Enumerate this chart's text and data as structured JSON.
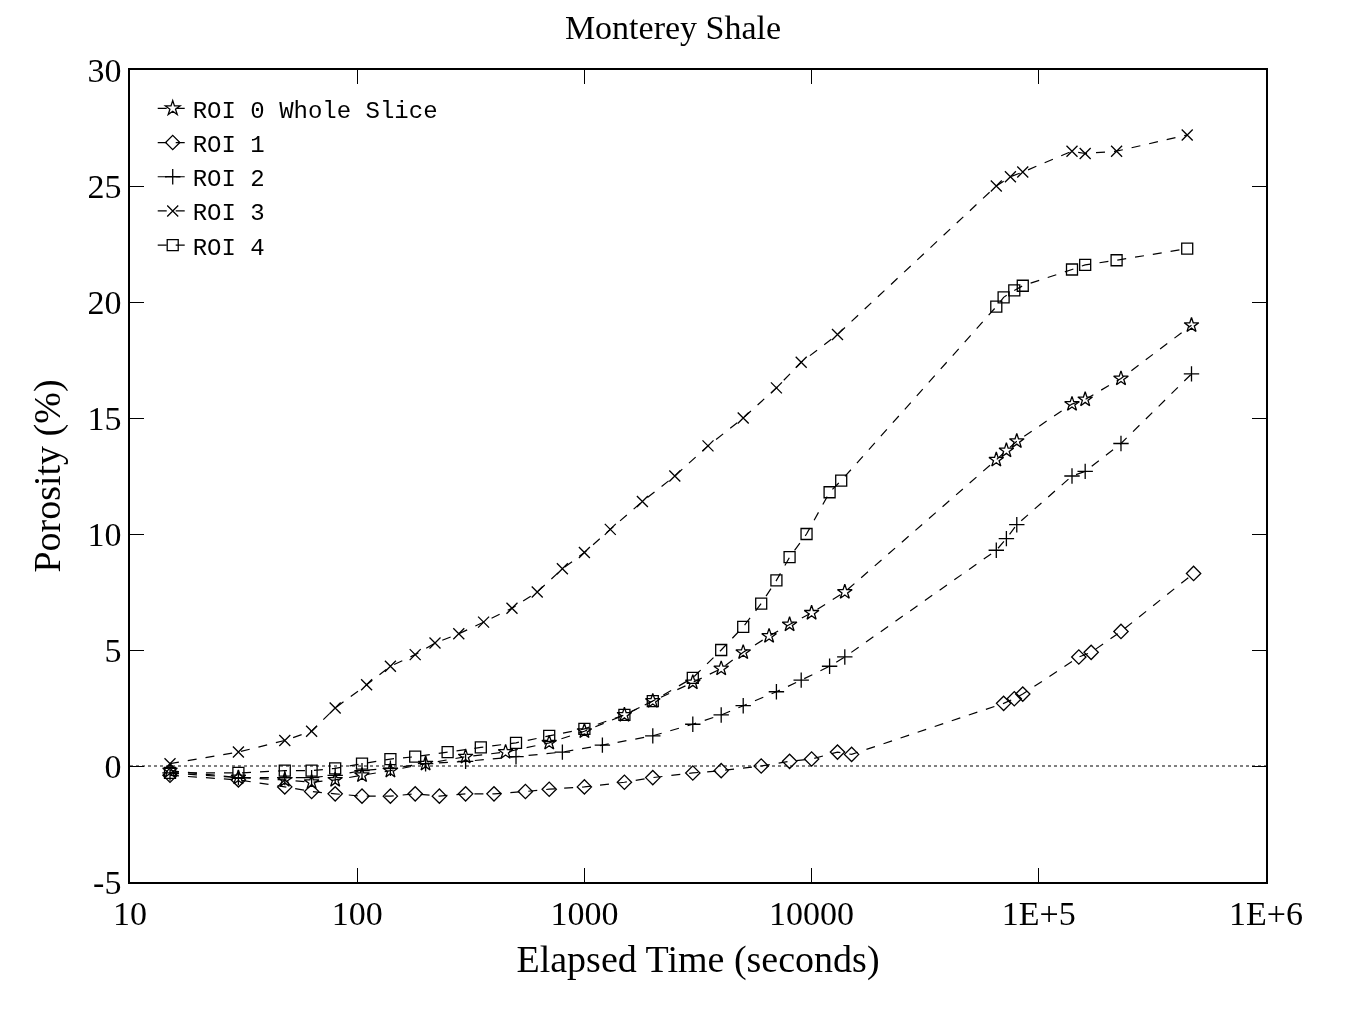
{
  "chart_data": {
    "type": "line",
    "title": "Monterey Shale",
    "xlabel": "Elapsed Time (seconds)",
    "ylabel": "Porosity (%)",
    "log": "x",
    "xlim": [
      10,
      1000000
    ],
    "xticks": [
      10,
      100,
      1000,
      10000,
      {
        "value": 100000,
        "label": "1E+5"
      },
      {
        "value": 1000000,
        "label": "1E+6"
      }
    ],
    "ylim": [
      -5,
      30
    ],
    "yticks": [
      -5,
      0,
      5,
      10,
      15,
      20,
      25,
      30
    ],
    "grid": false,
    "legend": "top left",
    "line_style": "dashed",
    "ref_lines": [
      {
        "axis": "y",
        "value": 0,
        "line_style": "dotted",
        "color": "#000000"
      }
    ],
    "series": [
      {
        "name": "ROI 0 Whole Slice",
        "color": "#000000",
        "marker": "star",
        "x": [
          15,
          30,
          48,
          63,
          80,
          105,
          140,
          200,
          300,
          450,
          700,
          1000,
          1500,
          2000,
          3000,
          4000,
          5000,
          6500,
          8000,
          10000,
          14000,
          65000,
          72000,
          80000,
          140000,
          160000,
          230000,
          470000
        ],
        "values": [
          -0.2,
          -0.5,
          -0.6,
          -0.7,
          -0.6,
          -0.4,
          -0.2,
          0.1,
          0.4,
          0.6,
          1.0,
          1.5,
          2.2,
          2.8,
          3.6,
          4.2,
          4.9,
          5.6,
          6.1,
          6.6,
          7.5,
          13.2,
          13.6,
          14.0,
          15.6,
          15.8,
          16.7,
          19.0
        ]
      },
      {
        "name": "ROI 1",
        "color": "#000000",
        "marker": "diamond",
        "x": [
          15,
          30,
          48,
          63,
          80,
          105,
          140,
          180,
          230,
          300,
          400,
          550,
          700,
          1000,
          1500,
          2000,
          3000,
          4000,
          6000,
          8000,
          10000,
          13000,
          15000,
          70000,
          78000,
          85000,
          150000,
          170000,
          230000,
          480000
        ],
        "values": [
          -0.4,
          -0.6,
          -0.9,
          -1.1,
          -1.2,
          -1.3,
          -1.3,
          -1.2,
          -1.3,
          -1.2,
          -1.2,
          -1.1,
          -1.0,
          -0.9,
          -0.7,
          -0.5,
          -0.3,
          -0.2,
          0.0,
          0.2,
          0.3,
          0.6,
          0.5,
          2.7,
          2.9,
          3.1,
          4.7,
          4.9,
          5.8,
          8.3
        ]
      },
      {
        "name": "ROI 2",
        "color": "#000000",
        "marker": "cross",
        "x": [
          15,
          30,
          48,
          63,
          80,
          105,
          140,
          200,
          300,
          500,
          800,
          1200,
          2000,
          3000,
          4000,
          5000,
          7000,
          9000,
          12000,
          14000,
          65000,
          72000,
          80000,
          140000,
          160000,
          230000,
          470000
        ],
        "values": [
          -0.3,
          -0.5,
          -0.5,
          -0.5,
          -0.4,
          -0.2,
          -0.1,
          0.1,
          0.2,
          0.4,
          0.6,
          0.9,
          1.3,
          1.8,
          2.2,
          2.6,
          3.2,
          3.7,
          4.3,
          4.7,
          9.3,
          9.8,
          10.4,
          12.5,
          12.7,
          13.9,
          16.9
        ]
      },
      {
        "name": "ROI 3",
        "color": "#000000",
        "marker": "x",
        "x": [
          15,
          30,
          48,
          63,
          80,
          110,
          140,
          180,
          220,
          280,
          360,
          480,
          620,
          800,
          1000,
          1300,
          1800,
          2500,
          3500,
          5000,
          7000,
          9000,
          13000,
          65000,
          75000,
          85000,
          140000,
          160000,
          220000,
          450000
        ],
        "values": [
          0.1,
          0.6,
          1.1,
          1.5,
          2.5,
          3.5,
          4.3,
          4.8,
          5.3,
          5.7,
          6.2,
          6.8,
          7.5,
          8.5,
          9.2,
          10.2,
          11.4,
          12.5,
          13.8,
          15.0,
          16.3,
          17.4,
          18.6,
          25.0,
          25.4,
          25.6,
          26.5,
          26.4,
          26.5,
          27.2
        ]
      },
      {
        "name": "ROI 4",
        "color": "#000000",
        "marker": "square",
        "x": [
          15,
          30,
          48,
          63,
          80,
          105,
          140,
          180,
          250,
          350,
          500,
          700,
          1000,
          1500,
          2000,
          3000,
          4000,
          5000,
          6000,
          7000,
          8000,
          9500,
          12000,
          13500,
          65000,
          70000,
          78000,
          85000,
          140000,
          160000,
          220000,
          450000
        ],
        "values": [
          -0.3,
          -0.3,
          -0.2,
          -0.2,
          -0.1,
          0.1,
          0.3,
          0.4,
          0.6,
          0.8,
          1.0,
          1.3,
          1.6,
          2.2,
          2.8,
          3.8,
          5.0,
          6.0,
          7.0,
          8.0,
          9.0,
          10.0,
          11.8,
          12.3,
          19.8,
          20.2,
          20.5,
          20.7,
          21.4,
          21.6,
          21.8,
          22.3
        ]
      }
    ]
  }
}
